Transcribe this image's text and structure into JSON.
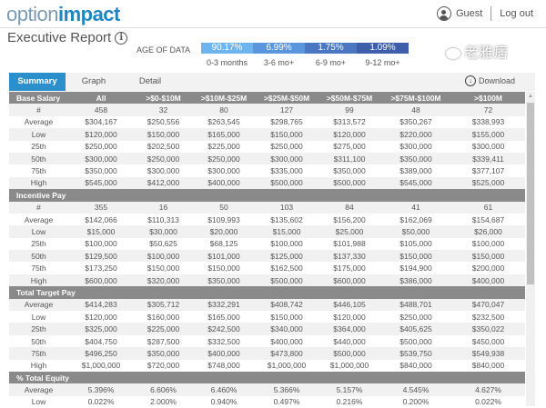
{
  "header": {
    "logo_part1": "option",
    "logo_part2": "impact",
    "user": "Guest",
    "logout": "Log out"
  },
  "page": {
    "title": "Executive Report"
  },
  "age_of_data": {
    "label": "AGE OF DATA",
    "segments": [
      {
        "value": "90.17%",
        "label": "0-3 months",
        "color": "#6eb4ef"
      },
      {
        "value": "6.99%",
        "label": "3-6 mo+",
        "color": "#5b95dc"
      },
      {
        "value": "1.75%",
        "label": "6-9 mo+",
        "color": "#4a76c2"
      },
      {
        "value": "1.09%",
        "label": "9-12 mo+",
        "color": "#3d5ea8"
      }
    ]
  },
  "tabs": [
    {
      "label": "Summary",
      "active": true
    },
    {
      "label": "Graph"
    },
    {
      "label": "Detail"
    }
  ],
  "download_label": "Download",
  "table": {
    "columns": [
      "All",
      ">$0-$10M",
      ">$10M-$25M",
      ">$25M-$50M",
      ">$50M-$75M",
      ">$75M-$100M",
      ">$100M"
    ],
    "groups": [
      {
        "title": "Base Salary",
        "rows": [
          {
            "label": "#",
            "values": [
              "458",
              "32",
              "80",
              "127",
              "99",
              "48",
              "72"
            ]
          },
          {
            "label": "Average",
            "values": [
              "$304,167",
              "$250,556",
              "$263,545",
              "$298,765",
              "$313,572",
              "$350,267",
              "$338,993"
            ]
          },
          {
            "label": "Low",
            "values": [
              "$120,000",
              "$150,000",
              "$165,000",
              "$150,000",
              "$120,000",
              "$220,000",
              "$155,000"
            ]
          },
          {
            "label": "25th",
            "values": [
              "$250,000",
              "$202,500",
              "$225,000",
              "$250,000",
              "$275,000",
              "$300,000",
              "$300,000"
            ]
          },
          {
            "label": "50th",
            "values": [
              "$300,000",
              "$250,000",
              "$250,000",
              "$300,000",
              "$311,100",
              "$350,000",
              "$339,411"
            ]
          },
          {
            "label": "75th",
            "values": [
              "$350,000",
              "$300,000",
              "$300,000",
              "$335,000",
              "$350,000",
              "$389,000",
              "$377,107"
            ]
          },
          {
            "label": "High",
            "values": [
              "$545,000",
              "$412,000",
              "$400,000",
              "$500,000",
              "$500,000",
              "$545,000",
              "$525,000"
            ]
          }
        ]
      },
      {
        "title": "Incentive Pay",
        "rows": [
          {
            "label": "#",
            "values": [
              "355",
              "16",
              "50",
              "103",
              "84",
              "41",
              "61"
            ]
          },
          {
            "label": "Average",
            "values": [
              "$142,066",
              "$110,313",
              "$109,993",
              "$135,602",
              "$156,200",
              "$162,069",
              "$154,687"
            ]
          },
          {
            "label": "Low",
            "values": [
              "$15,000",
              "$30,000",
              "$20,000",
              "$15,000",
              "$25,000",
              "$50,000",
              "$26,000"
            ]
          },
          {
            "label": "25th",
            "values": [
              "$100,000",
              "$50,625",
              "$68,125",
              "$100,000",
              "$101,988",
              "$105,000",
              "$100,000"
            ]
          },
          {
            "label": "50th",
            "values": [
              "$129,500",
              "$100,000",
              "$101,000",
              "$125,000",
              "$137,330",
              "$150,000",
              "$150,000"
            ]
          },
          {
            "label": "75th",
            "values": [
              "$173,250",
              "$150,000",
              "$150,000",
              "$162,500",
              "$175,000",
              "$194,900",
              "$200,000"
            ]
          },
          {
            "label": "High",
            "values": [
              "$600,000",
              "$320,000",
              "$350,000",
              "$500,000",
              "$600,000",
              "$386,000",
              "$400,000"
            ]
          }
        ]
      },
      {
        "title": "Total Target Pay",
        "rows": [
          {
            "label": "Average",
            "values": [
              "$414,283",
              "$305,712",
              "$332,291",
              "$408,742",
              "$446,105",
              "$488,701",
              "$470,047"
            ]
          },
          {
            "label": "Low",
            "values": [
              "$120,000",
              "$160,000",
              "$165,000",
              "$150,000",
              "$120,000",
              "$250,000",
              "$232,500"
            ]
          },
          {
            "label": "25th",
            "values": [
              "$325,000",
              "$225,000",
              "$242,500",
              "$340,000",
              "$364,000",
              "$405,625",
              "$350,022"
            ]
          },
          {
            "label": "50th",
            "values": [
              "$404,750",
              "$287,500",
              "$332,500",
              "$400,000",
              "$440,000",
              "$500,000",
              "$450,000"
            ]
          },
          {
            "label": "75th",
            "values": [
              "$496,250",
              "$350,000",
              "$400,000",
              "$473,800",
              "$500,000",
              "$539,750",
              "$549,938"
            ]
          },
          {
            "label": "High",
            "values": [
              "$1,000,000",
              "$720,000",
              "$748,000",
              "$1,000,000",
              "$1,000,000",
              "$840,000",
              "$840,000"
            ]
          }
        ]
      },
      {
        "title": "% Total Equity",
        "rows": [
          {
            "label": "Average",
            "values": [
              "5.396%",
              "6.606%",
              "6.460%",
              "5.366%",
              "5.157%",
              "4.545%",
              "4.627%"
            ]
          },
          {
            "label": "Low",
            "values": [
              "0.022%",
              "2.000%",
              "0.940%",
              "0.497%",
              "0.216%",
              "0.200%",
              "0.022%"
            ]
          }
        ]
      }
    ]
  },
  "watermark": "老雅痞"
}
